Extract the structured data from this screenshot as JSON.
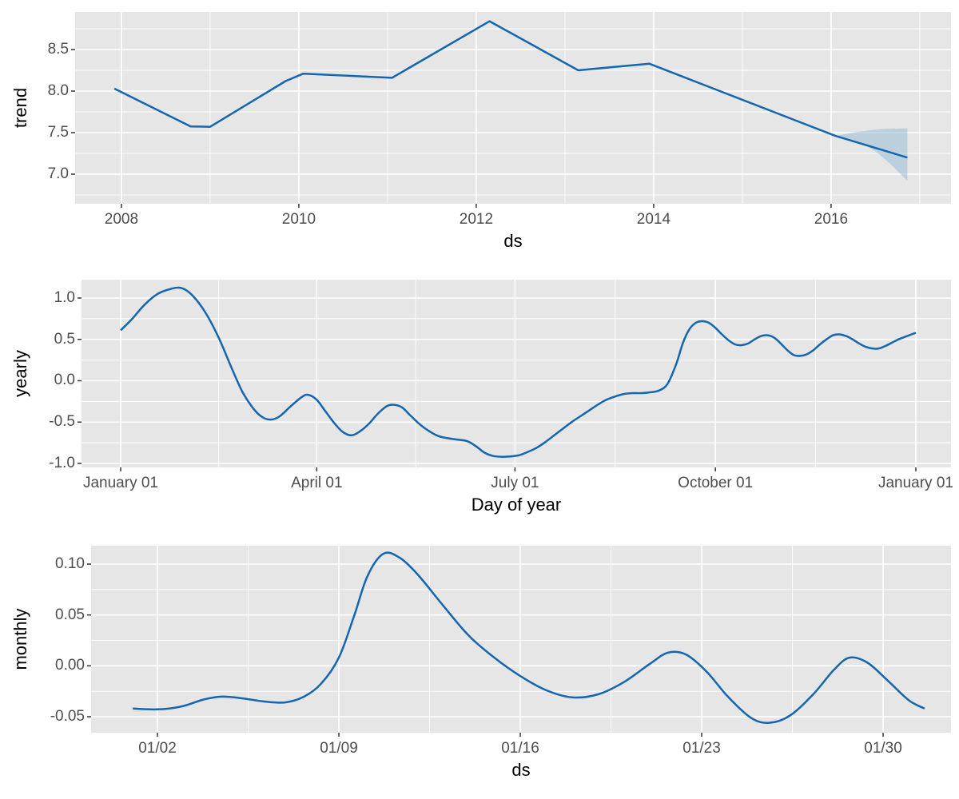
{
  "style": {
    "panel_bg": "#E6E6E6",
    "grid_color": "#FFFFFF",
    "line_color": "#1566B1",
    "band_color": "#8FB7D4",
    "band_opacity": 0.5,
    "tick_mark_color": "#333333",
    "tick_label_color": "#4d4d4d",
    "axis_title_color": "#000000"
  },
  "chart_data": [
    {
      "id": "trend",
      "type": "line",
      "xlabel": "ds",
      "ylabel": "trend",
      "smooth": false,
      "grid": true,
      "xlim": [
        2007.478,
        2017.352
      ],
      "ylim": [
        6.644,
        8.952
      ],
      "x_ticks": [
        {
          "v": 2008,
          "label": "2008"
        },
        {
          "v": 2010,
          "label": "2010"
        },
        {
          "v": 2012,
          "label": "2012"
        },
        {
          "v": 2014,
          "label": "2014"
        },
        {
          "v": 2016,
          "label": "2016"
        }
      ],
      "x_minor_ticks": [
        2009,
        2011,
        2013,
        2015,
        2017
      ],
      "y_ticks": [
        {
          "v": 8.5,
          "label": "8.5"
        },
        {
          "v": 8.0,
          "label": "8.0"
        },
        {
          "v": 7.5,
          "label": "7.5"
        },
        {
          "v": 7.0,
          "label": "7.0"
        }
      ],
      "y_minor_ticks": [
        8.75,
        8.25,
        7.75,
        7.25,
        6.75
      ],
      "series": {
        "x": [
          2007.92,
          2008.78,
          2009.0,
          2009.85,
          2010.05,
          2011.05,
          2012.15,
          2013.15,
          2013.95,
          2016.05,
          2016.86
        ],
        "y": [
          8.03,
          7.575,
          7.57,
          8.12,
          8.21,
          8.16,
          8.84,
          8.25,
          8.33,
          7.46,
          7.2
        ]
      },
      "uncertainty_band": {
        "x": [
          2016.05,
          2016.25,
          2016.45,
          2016.65,
          2016.86
        ],
        "upper": [
          7.46,
          7.5,
          7.53,
          7.545,
          7.55
        ],
        "lower": [
          7.46,
          7.41,
          7.31,
          7.14,
          6.92
        ]
      }
    },
    {
      "id": "yearly",
      "type": "line",
      "xlabel": "Day of year",
      "ylabel": "yearly",
      "smooth": true,
      "grid": true,
      "xlim": [
        -16.97,
        382.15
      ],
      "ylim": [
        -1.0483,
        1.2222
      ],
      "x_ticks": [
        {
          "v": 1,
          "label": "January 01"
        },
        {
          "v": 91,
          "label": "April 01"
        },
        {
          "v": 182,
          "label": "July 01"
        },
        {
          "v": 274,
          "label": "October 01"
        },
        {
          "v": 366,
          "label": "January 01"
        }
      ],
      "x_minor_ticks": [
        46,
        136.5,
        228,
        320
      ],
      "y_ticks": [
        {
          "v": 1.0,
          "label": "1.0"
        },
        {
          "v": 0.5,
          "label": "0.5"
        },
        {
          "v": 0.0,
          "label": "0.0"
        },
        {
          "v": -0.5,
          "label": "-0.5"
        },
        {
          "v": -1.0,
          "label": "-1.0"
        }
      ],
      "y_minor_ticks": [
        0.75,
        0.25,
        -0.25,
        -0.75
      ],
      "series": {
        "x": [
          1,
          6,
          12,
          18,
          24,
          29,
          34,
          40,
          46,
          52,
          57,
          62,
          66,
          70,
          74,
          79,
          84,
          87,
          91,
          95,
          99,
          103,
          107,
          111,
          115,
          119,
          123,
          126,
          130,
          134,
          138,
          142,
          146,
          150,
          155,
          160,
          164,
          168,
          172,
          176,
          180,
          184,
          188,
          192,
          196,
          200,
          204,
          208,
          212,
          216,
          220,
          224,
          228,
          232,
          236,
          240,
          244,
          248,
          252,
          256,
          259,
          262,
          265,
          268,
          271,
          274,
          277,
          280,
          283,
          286,
          289,
          292,
          295,
          298,
          301,
          304,
          307,
          310,
          313,
          316,
          319,
          322,
          325,
          328,
          331,
          334,
          337,
          340,
          343,
          346,
          349,
          352,
          355,
          358,
          361,
          364,
          366
        ],
        "y": [
          0.61,
          0.74,
          0.92,
          1.05,
          1.11,
          1.12,
          1.03,
          0.82,
          0.52,
          0.15,
          -0.14,
          -0.34,
          -0.44,
          -0.47,
          -0.43,
          -0.31,
          -0.2,
          -0.17,
          -0.23,
          -0.37,
          -0.51,
          -0.62,
          -0.66,
          -0.61,
          -0.52,
          -0.4,
          -0.31,
          -0.29,
          -0.32,
          -0.42,
          -0.52,
          -0.6,
          -0.66,
          -0.69,
          -0.71,
          -0.73,
          -0.79,
          -0.87,
          -0.91,
          -0.92,
          -0.915,
          -0.9,
          -0.86,
          -0.81,
          -0.74,
          -0.66,
          -0.58,
          -0.5,
          -0.43,
          -0.36,
          -0.29,
          -0.23,
          -0.19,
          -0.16,
          -0.15,
          -0.15,
          -0.14,
          -0.12,
          -0.04,
          0.2,
          0.45,
          0.62,
          0.7,
          0.72,
          0.7,
          0.64,
          0.56,
          0.49,
          0.44,
          0.43,
          0.45,
          0.5,
          0.54,
          0.55,
          0.52,
          0.45,
          0.37,
          0.31,
          0.3,
          0.32,
          0.37,
          0.44,
          0.5,
          0.55,
          0.56,
          0.54,
          0.5,
          0.45,
          0.41,
          0.39,
          0.39,
          0.42,
          0.46,
          0.5,
          0.53,
          0.56,
          0.58
        ]
      }
    },
    {
      "id": "monthly",
      "type": "line",
      "xlabel": "ds",
      "ylabel": "monthly",
      "smooth": true,
      "grid": true,
      "xlim": [
        -0.56,
        32.62
      ],
      "ylim": [
        -0.06571,
        0.11806
      ],
      "x_ticks": [
        {
          "v": 2,
          "label": "01/02"
        },
        {
          "v": 9,
          "label": "01/09"
        },
        {
          "v": 16,
          "label": "01/16"
        },
        {
          "v": 23,
          "label": "01/23"
        },
        {
          "v": 30,
          "label": "01/30"
        }
      ],
      "x_minor_ticks": [
        5.5,
        12.5,
        19.5,
        26.5
      ],
      "y_ticks": [
        {
          "v": 0.1,
          "label": "0.10"
        },
        {
          "v": 0.05,
          "label": "0.05"
        },
        {
          "v": 0.0,
          "label": "0.00"
        },
        {
          "v": -0.05,
          "label": "-0.05"
        }
      ],
      "y_minor_ticks": [
        0.075,
        0.025,
        -0.025
      ],
      "series": {
        "x": [
          1.05,
          1.7,
          2.3,
          3.0,
          3.8,
          4.5,
          5.3,
          6.1,
          6.9,
          7.6,
          8.3,
          9.0,
          9.6,
          10.1,
          10.7,
          11.3,
          12.0,
          13.0,
          14.0,
          15.0,
          16.0,
          17.0,
          18.0,
          19.0,
          20.0,
          21.0,
          21.7,
          22.4,
          23.2,
          24.0,
          24.9,
          25.6,
          26.4,
          27.3,
          28.1,
          28.7,
          29.4,
          30.2,
          31.0,
          31.6
        ],
        "y": [
          -0.042,
          -0.0428,
          -0.0424,
          -0.0395,
          -0.033,
          -0.0303,
          -0.032,
          -0.035,
          -0.036,
          -0.031,
          -0.018,
          0.008,
          0.05,
          0.088,
          0.11,
          0.107,
          0.091,
          0.06,
          0.03,
          0.008,
          -0.01,
          -0.024,
          -0.031,
          -0.028,
          -0.016,
          0.002,
          0.013,
          0.011,
          -0.006,
          -0.03,
          -0.051,
          -0.056,
          -0.049,
          -0.028,
          -0.004,
          0.008,
          0.003,
          -0.015,
          -0.034,
          -0.042
        ]
      }
    }
  ]
}
